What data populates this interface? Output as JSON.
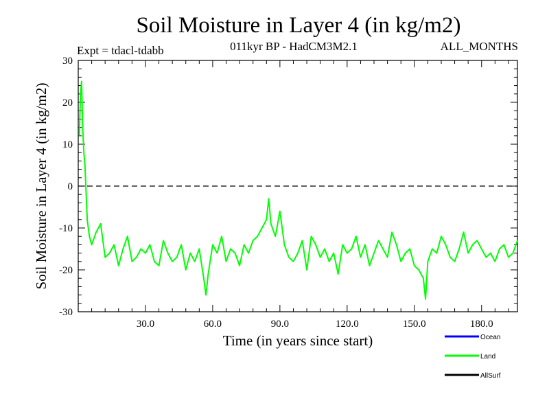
{
  "chart_data": {
    "type": "line",
    "title": "Soil Moisture in Layer 4 (in kg/m2)",
    "subtitle_left": "Expt = tdacl-tdabb",
    "subtitle_center": "011kyr BP - HadCM3M2.1",
    "subtitle_right": "ALL_MONTHS",
    "xlabel": "Time (in years since start)",
    "ylabel": "Soil Moisture in Layer 4 (in kg/m2)",
    "xlim": [
      0,
      196
    ],
    "ylim": [
      -30,
      30
    ],
    "x_ticks": [
      30,
      60,
      90,
      120,
      150,
      180
    ],
    "x_tick_labels": [
      "30.0",
      "60.0",
      "90.0",
      "120.0",
      "150.0",
      "180.0"
    ],
    "y_ticks": [
      -30,
      -20,
      -10,
      0,
      10,
      20,
      30
    ],
    "y_tick_labels": [
      "-30",
      "-20",
      "-10",
      "0",
      "10",
      "20",
      "30"
    ],
    "zero_line": {
      "y": 0,
      "style": "dashed"
    },
    "legend": {
      "placement": "bottom-right",
      "entries": [
        {
          "name": "Ocean",
          "color": "#0000ff"
        },
        {
          "name": "Land",
          "color": "#00ff00"
        },
        {
          "name": "AllSurf",
          "color": "#000000"
        }
      ]
    },
    "series": [
      {
        "name": "Land",
        "color": "#00ff00",
        "x": [
          0.5,
          1,
          1.5,
          2,
          2.5,
          3,
          4,
          5,
          6,
          8,
          10,
          12,
          14,
          16,
          18,
          20,
          22,
          24,
          26,
          28,
          30,
          32,
          34,
          36,
          38,
          40,
          42,
          44,
          46,
          48,
          50,
          52,
          54,
          56,
          57,
          58,
          60,
          62,
          64,
          66,
          68,
          70,
          72,
          74,
          76,
          78,
          80,
          82,
          84,
          85,
          86,
          88,
          90,
          92,
          94,
          96,
          98,
          100,
          102,
          104,
          106,
          108,
          110,
          112,
          114,
          116,
          118,
          120,
          122,
          124,
          126,
          128,
          130,
          132,
          134,
          136,
          138,
          140,
          142,
          144,
          146,
          148,
          150,
          152,
          154,
          155,
          156,
          158,
          160,
          162,
          164,
          166,
          168,
          170,
          172,
          174,
          176,
          178,
          180,
          182,
          184,
          186,
          188,
          190,
          192,
          194,
          196
        ],
        "values": [
          12,
          22,
          25,
          14,
          8,
          5,
          -8,
          -12,
          -14,
          -11,
          -9,
          -17,
          -16,
          -14,
          -19,
          -15,
          -12,
          -18,
          -17,
          -15,
          -16,
          -14,
          -18,
          -19,
          -13,
          -16,
          -18,
          -17,
          -14,
          -20,
          -16,
          -18,
          -15,
          -22,
          -26,
          -21,
          -14,
          -16,
          -12,
          -18,
          -15,
          -16,
          -19,
          -14,
          -16,
          -13,
          -12,
          -10,
          -8,
          -3,
          -9,
          -12,
          -6,
          -14,
          -17,
          -18,
          -16,
          -13,
          -20,
          -12,
          -14,
          -17,
          -15,
          -18,
          -16,
          -21,
          -14,
          -16,
          -15,
          -12,
          -17,
          -14,
          -19,
          -16,
          -13,
          -15,
          -17,
          -11,
          -14,
          -18,
          -16,
          -15,
          -19,
          -20,
          -22,
          -27,
          -18,
          -15,
          -16,
          -12,
          -14,
          -17,
          -18,
          -15,
          -11,
          -16,
          -14,
          -13,
          -15,
          -17,
          -16,
          -18,
          -15,
          -14,
          -17,
          -16,
          -13
        ]
      }
    ]
  }
}
